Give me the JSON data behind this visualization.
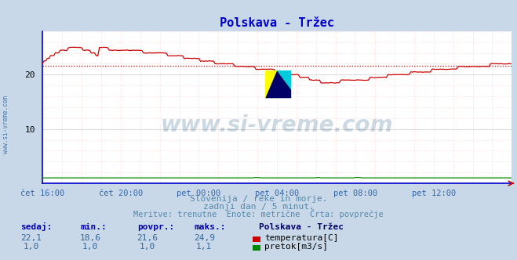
{
  "title": "Polskava - Tržec",
  "fig_bg_color": "#c8d8e8",
  "plot_bg_color": "#ffffff",
  "temp_color": "#cc0000",
  "flow_color": "#008800",
  "avg_line_color": "#cc0000",
  "avg_value": 21.6,
  "ylim": [
    0,
    28
  ],
  "yticks": [
    10,
    20
  ],
  "title_color": "#0000cc",
  "text_color": "#5588aa",
  "xlabel_color": "#3366aa",
  "watermark": "www.si-vreme.com",
  "watermark_color": "#1a5580",
  "subtitle1": "Slovenija / reke in morje.",
  "subtitle2": "zadnji dan / 5 minut.",
  "subtitle3": "Meritve: trenutne  Enote: metrične  Črta: povprečje",
  "legend_title": "Polskava - Tržec",
  "stats_headers": [
    "sedaj:",
    "min.:",
    "povpr.:",
    "maks.:"
  ],
  "temp_stats": [
    "22,1",
    "18,6",
    "21,6",
    "24,9"
  ],
  "flow_stats": [
    "1,0",
    "1,0",
    "1,0",
    "1,1"
  ],
  "temp_label": "temperatura[C]",
  "flow_label": "pretok[m3/s]",
  "x_tick_labels": [
    "čet 16:00",
    "čet 20:00",
    "pet 00:00",
    "pet 04:00",
    "pet 08:00",
    "pet 12:00"
  ],
  "x_tick_positions": [
    0.0,
    0.1667,
    0.3333,
    0.5,
    0.6667,
    0.8333
  ],
  "minor_grid_color": "#ffcccc",
  "major_grid_color": "#dddddd",
  "border_color": "#0000cc",
  "n_points": 289
}
